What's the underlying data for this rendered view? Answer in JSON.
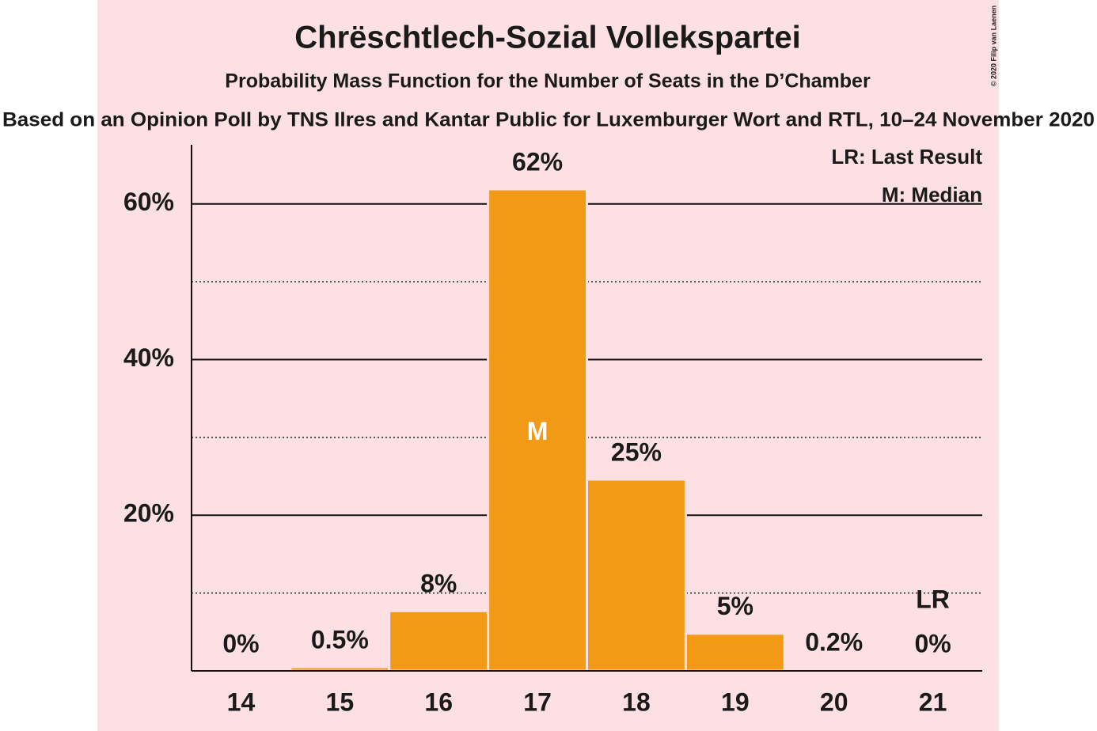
{
  "chart_data": {
    "type": "bar",
    "title": "Chrëschtlech-Sozial Vollekspartei",
    "subtitle": "Probability Mass Function for the Number of Seats in the D’Chamber",
    "caption": "Based on an Opinion Poll by TNS Ilres and Kantar Public for Luxemburger Wort and RTL, 10–24 November 2020",
    "copyright": "© 2020 Filip van Laenen",
    "categories": [
      "14",
      "15",
      "16",
      "17",
      "18",
      "19",
      "20",
      "21"
    ],
    "values": [
      0,
      0.5,
      7.7,
      61.9,
      24.6,
      4.8,
      0.2,
      0
    ],
    "value_labels": [
      "0%",
      "0.5%",
      "8%",
      "62%",
      "25%",
      "5%",
      "0.2%",
      "0%"
    ],
    "color": "#f29a16",
    "ylim": [
      0,
      67.6
    ],
    "yticks": [
      {
        "value": 20,
        "label": "20%"
      },
      {
        "value": 40,
        "label": "40%"
      },
      {
        "value": 60,
        "label": "60%"
      }
    ],
    "minor_yticks": [
      10,
      30,
      50
    ],
    "grid": true,
    "annotations": [
      {
        "text": "M",
        "category": "17"
      },
      {
        "text": "LR",
        "category": "21"
      }
    ],
    "legend": [
      "LR: Last Result",
      "M: Median"
    ]
  }
}
